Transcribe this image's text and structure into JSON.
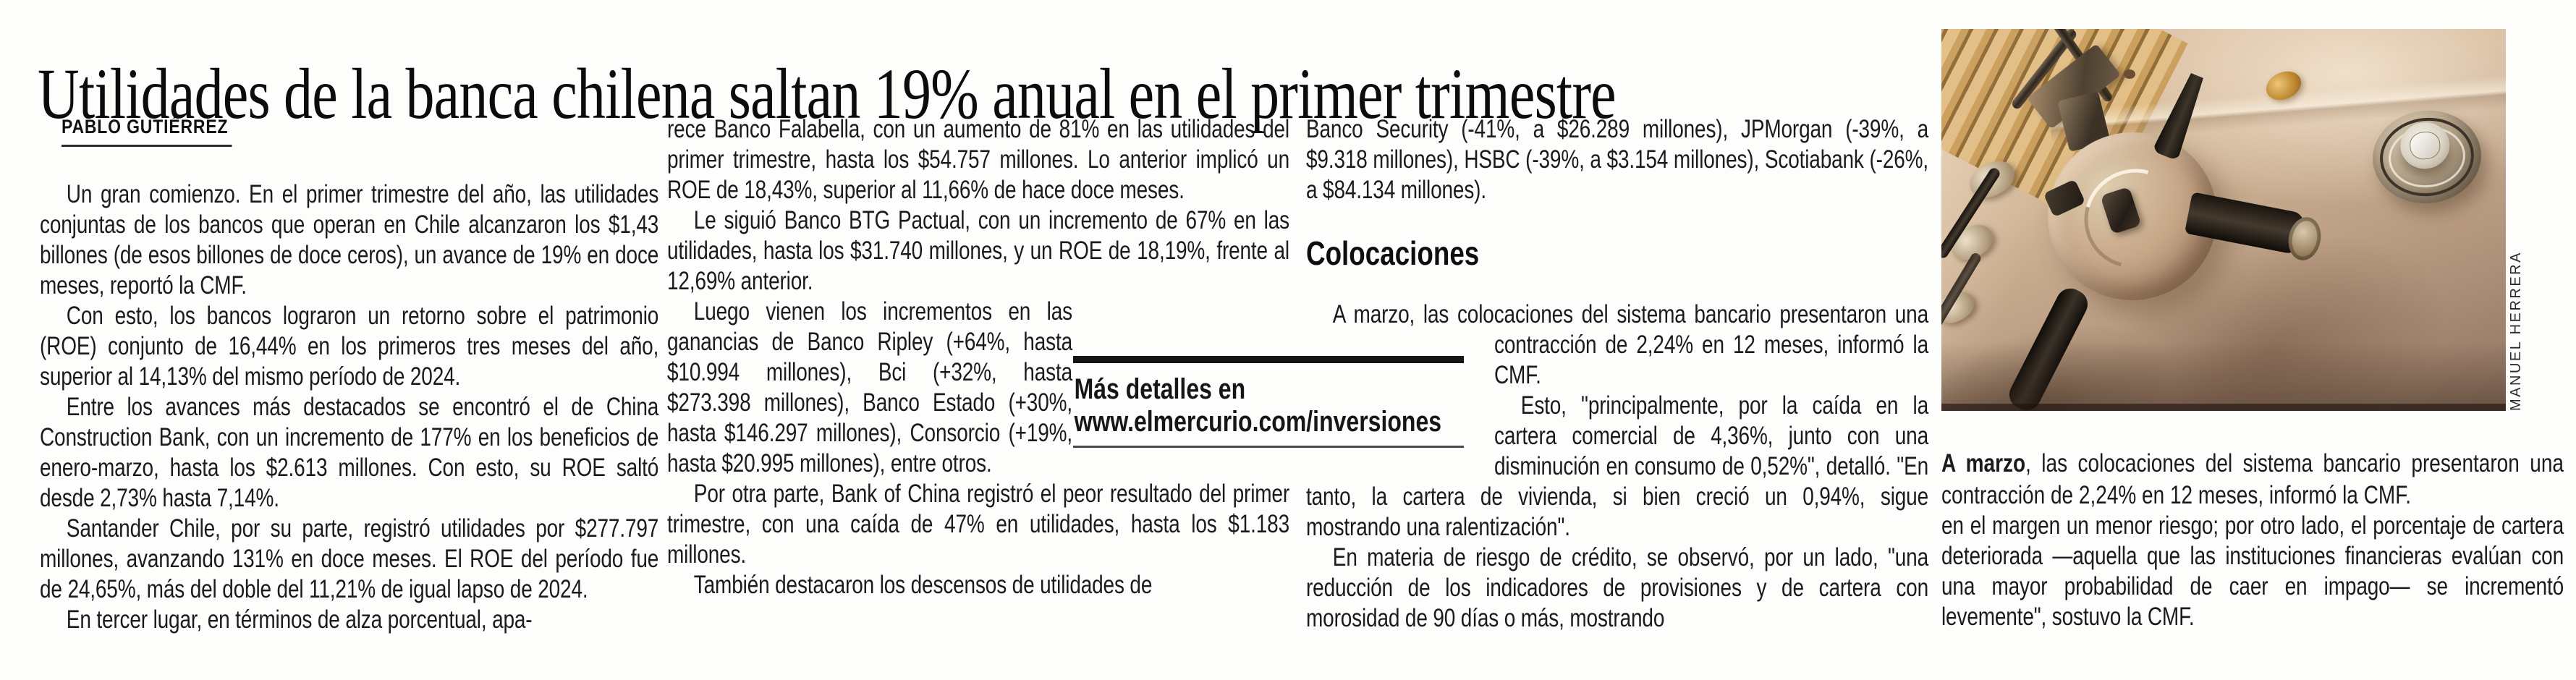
{
  "colors": {
    "paper": "#fdfdfc",
    "ink": "#1a1a1a",
    "inset_bar": "#141414"
  },
  "article": {
    "headline": "Utilidades de la banca chilena saltan 19% anual en el primer trimestre",
    "byline": "PABLO GUTIÉRREZ",
    "col1": [
      "Un gran comienzo. En el primer trimestre del año, las utilidades conjuntas de los bancos que operan en Chile alcanzaron los $1,43 billones (de esos billones de doce ceros), un avance de 19% en doce meses, reportó la CMF.",
      "Con esto, los bancos lograron un retorno sobre el patrimonio (ROE) conjunto de 16,44% en los primeros tres meses del año, superior al 14,13% del mismo período de 2024.",
      "Entre los avances más destacados se encontró el de China Construction Bank, con un incremento de 177% en los beneficios de enero-marzo, hasta los $2.613 millones. Con esto, su ROE saltó desde 2,73% hasta 7,14%.",
      "Santander Chile, por su parte, registró utilidades por $277.797 millones, avanzando 131% en doce meses. El ROE del período fue de 24,65%, más del doble del 11,21% de igual lapso de 2024.",
      "En tercer lugar, en términos de alza porcentual, apa-"
    ],
    "col2": [
      "rece Banco Falabella, con un aumento de 81% en las utilidades del primer trimestre, hasta los $54.757 millones. Lo anterior implicó un ROE de 18,43%, superior al 11,66% de hace doce meses.",
      "Le siguió Banco BTG Pactual, con un incremento de 67% en las utilidades, hasta los $31.740 millones, y un ROE de 18,19%, frente al 12,69% anterior.",
      "Luego vienen los incrementos en las ganancias de Banco Ripley (+64%, hasta $10.994 millones), Bci (+32%, hasta $273.398 millones), Banco Estado (+30%, hasta $146.297 millones), Consorcio (+19%, hasta $20.995 millones), entre otros.",
      "Por otra parte, Bank of China registró el peor resultado del primer trimestre, con una caída de 47% en utilidades, hasta los $1.183 millones.",
      "También destacaron los descensos de utilidades de"
    ],
    "col3": {
      "p1": "Banco Security (-41%, a $26.289 millones), JPMorgan (-39%, a $9.318 millones), HSBC (-39%, a $3.154 millones), Scotiabank (-26%, a $84.134 millones).",
      "subhead": "Colocaciones",
      "p2": "A marzo, las colocaciones del sistema bancario presentaron una contracción de 2,24% en 12 meses, informó la CMF.",
      "p3": "Esto, \"principalmente, por la caída en la cartera comercial de 4,36%, junto con una disminución en consumo de 0,52%\", detalló. \"En tanto, la cartera de vivienda, si bien creció un 0,94%, sigue mostrando una ralentización\".",
      "p4": "En materia de riesgo de crédito, se observó, por un lado, \"una reducción de los indicadores de provisiones y de cartera con morosidad de 90 días o más, mostrando"
    },
    "col4": [
      "en el margen un menor riesgo; por otro lado, el porcentaje de cartera deteriorada —aquella que las instituciones financieras evalúan con una mayor probabilidad de caer en impago— se incrementó levemente\", sostuvo la CMF."
    ],
    "inset": {
      "line1": "Más detalles en",
      "line2": "www.elmercurio.com/inversiones"
    },
    "photo": {
      "subject": "bank-vault-door",
      "credit": "MANUEL HERRERA",
      "caption_lead": "A marzo",
      "caption_rest": ", las colocaciones del sistema bancario presentaron una contracción de 2,24% en 12 meses, informó la CMF."
    }
  }
}
